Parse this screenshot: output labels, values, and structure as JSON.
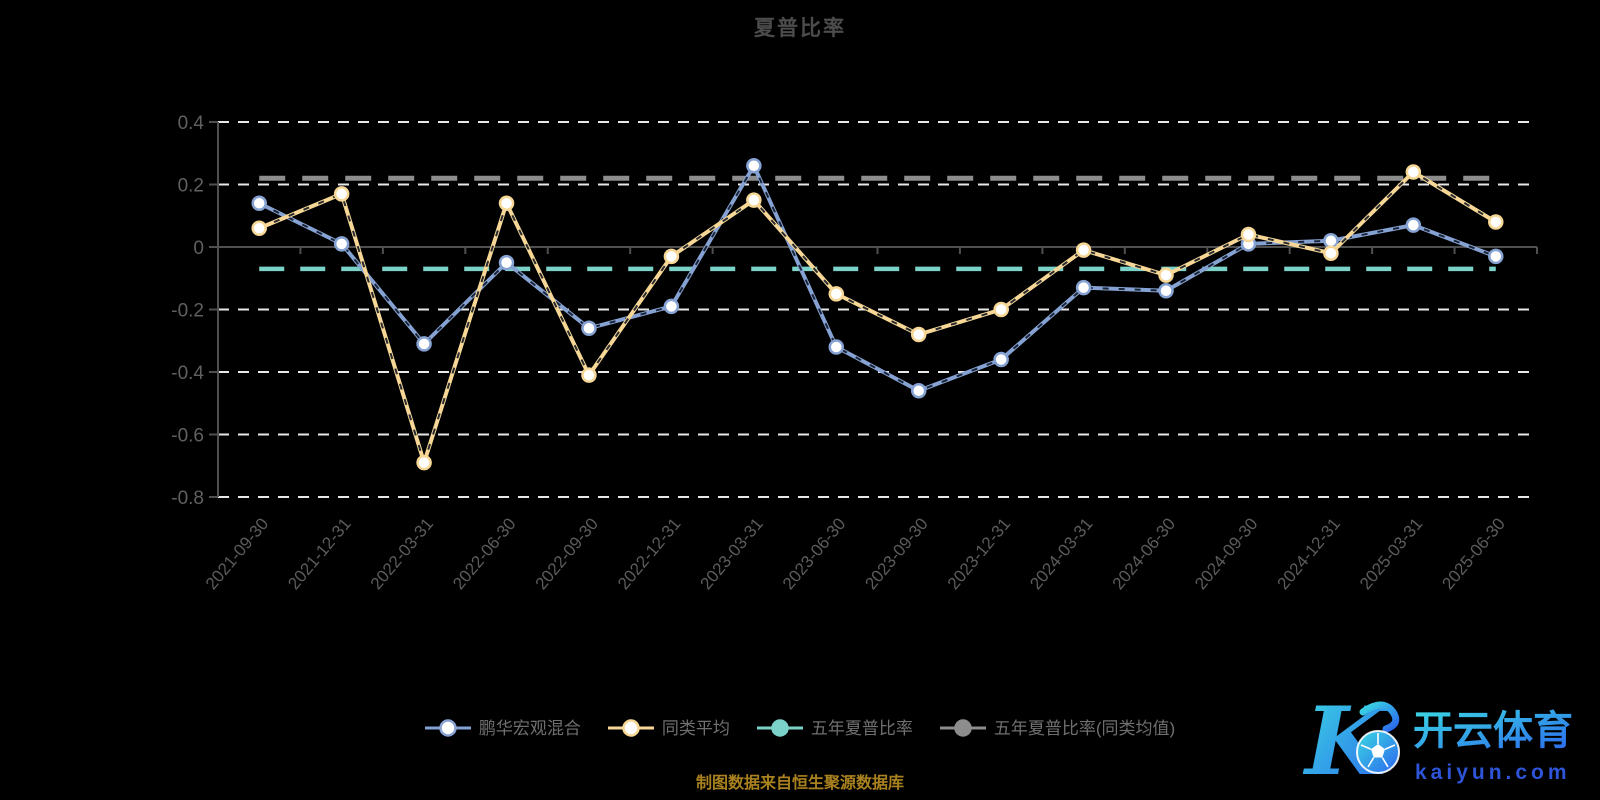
{
  "title": "夏普比率",
  "caption": "制图数据来自恒生聚源数据库",
  "logo": {
    "monogram": "K",
    "brand": "开云体育",
    "domain": "kaiyun.com",
    "gradient_start": "#3bd9e2",
    "gradient_end": "#2b66ee",
    "domain_color": "#2e55d8"
  },
  "axis": {
    "x_tick_color": "#5c5c5c",
    "y_tick_color": "#606060",
    "axis_line_color": "#4f4f4f",
    "gridline_color": "#e8e8e8"
  },
  "chart_data": {
    "type": "line",
    "title": "夏普比率",
    "categories": [
      "2021-09-30",
      "2021-12-31",
      "2022-03-31",
      "2022-06-30",
      "2022-09-30",
      "2022-12-31",
      "2023-03-31",
      "2023-06-30",
      "2023-09-30",
      "2023-12-31",
      "2024-03-31",
      "2024-06-30",
      "2024-09-30",
      "2024-12-31",
      "2025-03-31",
      "2025-06-30"
    ],
    "series": [
      {
        "name": "鹏华宏观混合",
        "type": "line",
        "color": "#85a2d3",
        "marker_fill": "#ffffff",
        "values": [
          0.14,
          0.01,
          -0.31,
          -0.05,
          -0.26,
          -0.19,
          0.26,
          -0.32,
          -0.46,
          -0.36,
          -0.13,
          -0.14,
          0.01,
          0.02,
          0.07,
          -0.03
        ]
      },
      {
        "name": "同类平均",
        "type": "line",
        "color": "#f7d796",
        "marker_fill": "#ffffff",
        "values": [
          0.06,
          0.17,
          -0.69,
          0.14,
          -0.41,
          -0.03,
          0.15,
          -0.15,
          -0.28,
          -0.2,
          -0.01,
          -0.09,
          0.04,
          -0.02,
          0.24,
          0.08
        ]
      },
      {
        "name": "五年夏普比率",
        "type": "hline",
        "color": "#7bd2c8",
        "value": -0.07
      },
      {
        "name": "五年夏普比率(同类均值)",
        "type": "hline",
        "color": "#8d8d8d",
        "value": 0.22
      }
    ],
    "yticks": [
      0.4,
      0.2,
      0,
      -0.2,
      -0.4,
      -0.6,
      -0.8
    ],
    "ylim": [
      -0.8,
      0.4
    ],
    "grid": true,
    "xlabel_rotation_deg": 50,
    "legend_position": "bottom"
  }
}
